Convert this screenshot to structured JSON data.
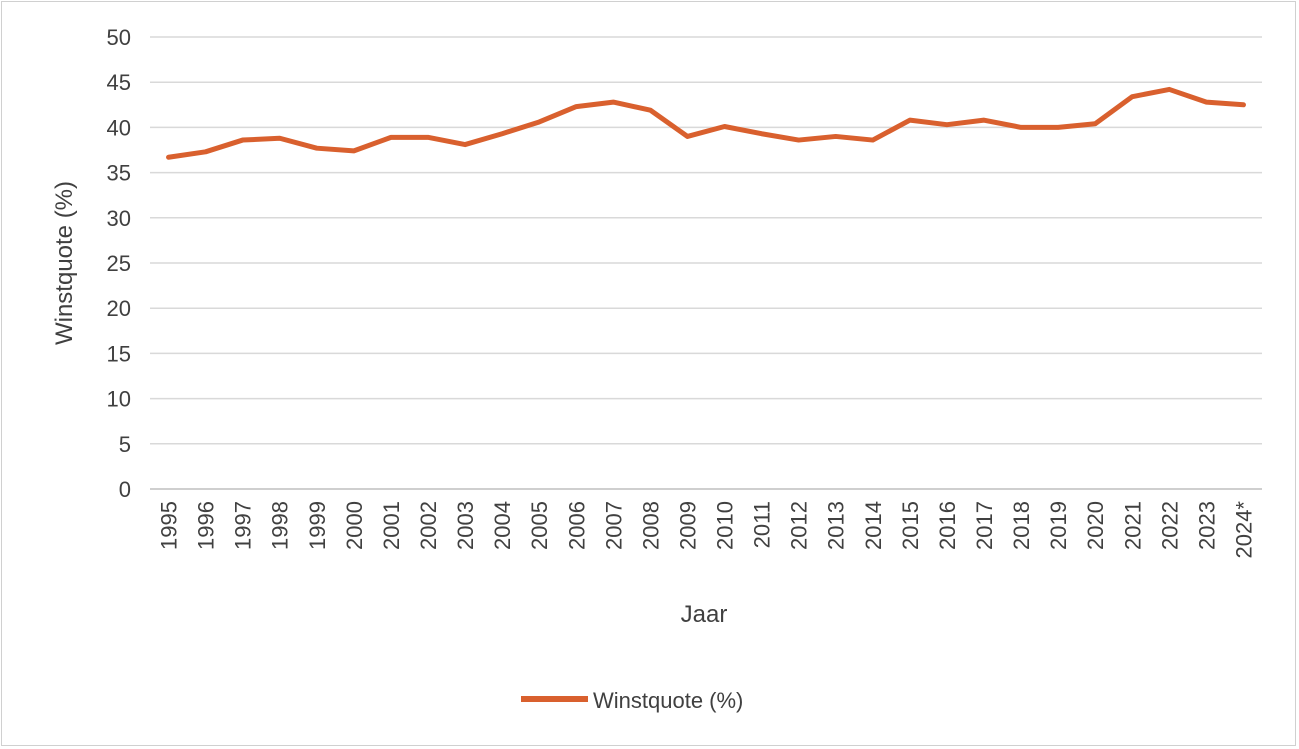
{
  "chart_data": {
    "type": "line",
    "title": "",
    "xlabel": "Jaar",
    "ylabel": "Winstquote (%)",
    "ylim": [
      0,
      50
    ],
    "yticks": [
      0,
      5,
      10,
      15,
      20,
      25,
      30,
      35,
      40,
      45,
      50
    ],
    "grid": true,
    "legend_position": "bottom",
    "categories": [
      "1995",
      "1996",
      "1997",
      "1998",
      "1999",
      "2000",
      "2001",
      "2002",
      "2003",
      "2004",
      "2005",
      "2006",
      "2007",
      "2008",
      "2009",
      "2010",
      "2011",
      "2012",
      "2013",
      "2014",
      "2015",
      "2016",
      "2017",
      "2018",
      "2019",
      "2020",
      "2021",
      "2022",
      "2023",
      "2024*"
    ],
    "series": [
      {
        "name": "Winstquote (%)",
        "color": "#D9602E",
        "values": [
          36.7,
          37.3,
          38.6,
          38.8,
          37.7,
          37.4,
          38.9,
          38.9,
          38.1,
          39.3,
          40.6,
          42.3,
          42.8,
          41.9,
          39.0,
          40.1,
          39.3,
          38.6,
          39.0,
          38.6,
          40.8,
          40.3,
          40.8,
          40.0,
          40.0,
          40.4,
          43.4,
          44.2,
          42.8,
          42.5
        ]
      }
    ]
  }
}
